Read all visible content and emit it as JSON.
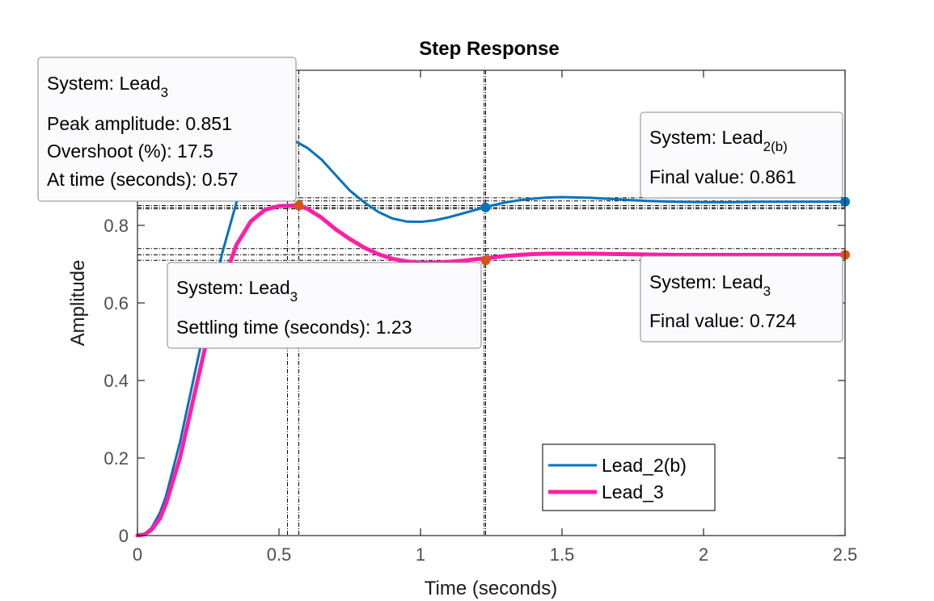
{
  "chart_data": {
    "type": "line",
    "title": "Step Response",
    "xlabel": "Time (seconds)",
    "ylabel": "Amplitude",
    "xlim": [
      0,
      2.5
    ],
    "ylim": [
      0,
      1.2
    ],
    "xticks": [
      0,
      0.5,
      1,
      1.5,
      2,
      2.5
    ],
    "xtick_labels": [
      "0",
      "0.5",
      "1",
      "1.5",
      "2",
      "2.5"
    ],
    "yticks": [
      0,
      0.2,
      0.4,
      0.6,
      0.8
    ],
    "ytick_labels": [
      "0",
      "0.2",
      "0.4",
      "0.6",
      "0.8"
    ],
    "grid": false,
    "legend": {
      "placement": "bottom-center"
    },
    "series": [
      {
        "name": "Lead_2(b)",
        "color": "#0072BD",
        "x": [
          0,
          0.025,
          0.05,
          0.08,
          0.1,
          0.15,
          0.2,
          0.25,
          0.3,
          0.35,
          0.4,
          0.45,
          0.5,
          0.55,
          0.6,
          0.65,
          0.7,
          0.75,
          0.8,
          0.85,
          0.9,
          0.95,
          1.0,
          1.05,
          1.1,
          1.15,
          1.2,
          1.25,
          1.3,
          1.35,
          1.4,
          1.45,
          1.5,
          1.6,
          1.7,
          1.8,
          1.9,
          2.0,
          2.1,
          2.2,
          2.3,
          2.4,
          2.5
        ],
        "y": [
          0,
          0.004,
          0.02,
          0.06,
          0.1,
          0.24,
          0.41,
          0.58,
          0.73,
          0.86,
          0.95,
          1.01,
          1.03,
          1.02,
          1.0,
          0.97,
          0.93,
          0.89,
          0.86,
          0.835,
          0.818,
          0.81,
          0.809,
          0.813,
          0.821,
          0.831,
          0.841,
          0.851,
          0.859,
          0.865,
          0.869,
          0.872,
          0.873,
          0.871,
          0.867,
          0.863,
          0.861,
          0.86,
          0.86,
          0.861,
          0.861,
          0.861,
          0.861
        ]
      },
      {
        "name": "Lead_3",
        "color": "#FF1FA6",
        "x": [
          0,
          0.025,
          0.05,
          0.08,
          0.1,
          0.15,
          0.2,
          0.25,
          0.3,
          0.35,
          0.4,
          0.45,
          0.5,
          0.55,
          0.57,
          0.6,
          0.65,
          0.7,
          0.75,
          0.8,
          0.85,
          0.9,
          0.95,
          1.0,
          1.05,
          1.1,
          1.15,
          1.2,
          1.25,
          1.3,
          1.35,
          1.4,
          1.45,
          1.5,
          1.6,
          1.7,
          1.8,
          1.9,
          2.0,
          2.1,
          2.2,
          2.3,
          2.4,
          2.5
        ],
        "y": [
          0,
          0.003,
          0.015,
          0.045,
          0.08,
          0.2,
          0.36,
          0.52,
          0.65,
          0.75,
          0.81,
          0.84,
          0.85,
          0.851,
          0.851,
          0.843,
          0.82,
          0.79,
          0.765,
          0.743,
          0.726,
          0.714,
          0.707,
          0.704,
          0.704,
          0.706,
          0.709,
          0.713,
          0.717,
          0.721,
          0.724,
          0.726,
          0.727,
          0.727,
          0.727,
          0.726,
          0.725,
          0.724,
          0.724,
          0.724,
          0.724,
          0.724,
          0.724,
          0.724
        ]
      }
    ],
    "markers": [
      {
        "series": "Lead_2(b)",
        "x": 1.23,
        "y": 0.846,
        "color": "#0072BD"
      },
      {
        "series": "Lead_2(b)",
        "x": 2.5,
        "y": 0.861,
        "color": "#0072BD"
      },
      {
        "series": "Lead_3",
        "x": 0.57,
        "y": 0.851,
        "color": "#D95319"
      },
      {
        "series": "Lead_3",
        "x": 1.23,
        "y": 0.71,
        "color": "#D95319"
      },
      {
        "series": "Lead_3",
        "x": 2.5,
        "y": 0.724,
        "color": "#D95319"
      }
    ],
    "reference_lines": {
      "horizontal": [
        0.871,
        0.863,
        0.851,
        0.846,
        0.843,
        0.74,
        0.724,
        0.71
      ],
      "vertical": [
        0.53,
        0.57,
        1.225,
        1.23
      ]
    },
    "datatips": [
      {
        "id": "peak-lead3",
        "system_prefix": "System: Lead",
        "system_sub": "3",
        "lines": [
          "Peak amplitude: 0.851",
          "Overshoot (%): 17.5",
          "At time (seconds): 0.57"
        ]
      },
      {
        "id": "settling-lead3",
        "system_prefix": "System: Lead",
        "system_sub": "3",
        "lines": [
          "Settling time (seconds): 1.23"
        ]
      },
      {
        "id": "final-lead2b",
        "system_prefix": "System: Lead",
        "system_sub": "2(b)",
        "lines": [
          "Final value: 0.861"
        ]
      },
      {
        "id": "final-lead3",
        "system_prefix": "System: Lead",
        "system_sub": "3",
        "lines": [
          "Final value: 0.724"
        ]
      }
    ]
  }
}
